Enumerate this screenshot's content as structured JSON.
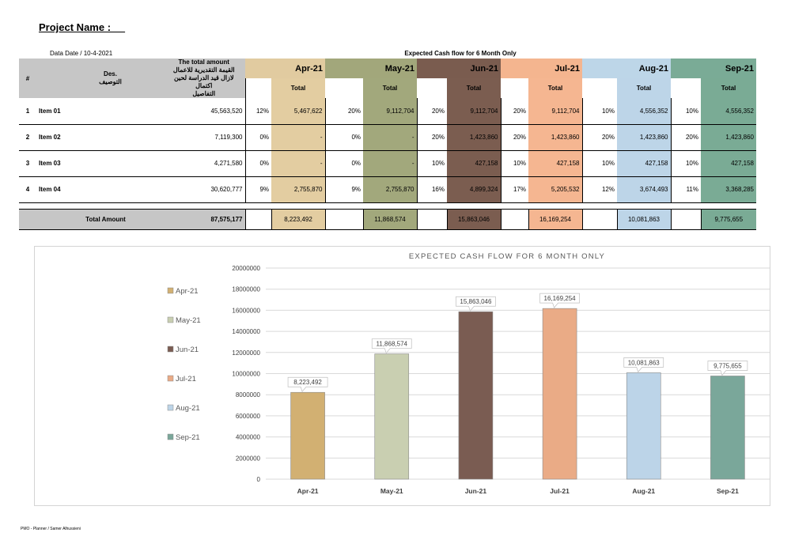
{
  "header": {
    "project_name": "Project Name :     ",
    "data_date": "Data Date /  10-4-2021",
    "table_title": "Expected Cash flow for 6 Month Only"
  },
  "table": {
    "col_hash": "#",
    "col_des_en": "Des.",
    "col_des_ar": "التوصيف",
    "col_amount_en": "The total amount",
    "col_amount_ar1": "القيمة التقديرية للاعمال",
    "col_amount_ar2": "لازال قيد الدراسة لحين اكتمال",
    "col_amount_ar3": "التفاصيل",
    "sub_label": "Total",
    "months": [
      {
        "label": "Apr-21",
        "head": "#e1cba0",
        "body": "#e3cda1"
      },
      {
        "label": "May-21",
        "head": "#a2a77b",
        "body": "#a2a87c"
      },
      {
        "label": "Jun-21",
        "head": "#7a5c4f",
        "body": "#7b5d50"
      },
      {
        "label": "Jul-21",
        "head": "#f4b58f",
        "body": "#f5b691"
      },
      {
        "label": "Aug-21",
        "head": "#bdd6e8",
        "body": "#bdd5e8"
      },
      {
        "label": "Sep-21",
        "head": "#7aab96",
        "body": "#7aab95"
      }
    ],
    "rows": [
      {
        "num": "1",
        "name": "Item 01",
        "total": "45,563,520",
        "cells": [
          [
            "12%",
            "5,467,622"
          ],
          [
            "20%",
            "9,112,704"
          ],
          [
            "20%",
            "9,112,704"
          ],
          [
            "20%",
            "9,112,704"
          ],
          [
            "10%",
            "4,556,352"
          ],
          [
            "10%",
            "4,556,352"
          ]
        ]
      },
      {
        "num": "2",
        "name": "Item 02",
        "total": "7,119,300",
        "cells": [
          [
            "0%",
            "-"
          ],
          [
            "0%",
            "-"
          ],
          [
            "20%",
            "1,423,860"
          ],
          [
            "20%",
            "1,423,860"
          ],
          [
            "20%",
            "1,423,860"
          ],
          [
            "20%",
            "1,423,860"
          ]
        ]
      },
      {
        "num": "3",
        "name": "Item 03",
        "total": "4,271,580",
        "cells": [
          [
            "0%",
            "-"
          ],
          [
            "0%",
            "-"
          ],
          [
            "10%",
            "427,158"
          ],
          [
            "10%",
            "427,158"
          ],
          [
            "10%",
            "427,158"
          ],
          [
            "10%",
            "427,158"
          ]
        ]
      },
      {
        "num": "4",
        "name": "Item 04",
        "total": "30,620,777",
        "cells": [
          [
            "9%",
            "2,755,870"
          ],
          [
            "9%",
            "2,755,870"
          ],
          [
            "16%",
            "4,899,324"
          ],
          [
            "17%",
            "5,205,532"
          ],
          [
            "12%",
            "3,674,493"
          ],
          [
            "11%",
            "3,368,285"
          ]
        ]
      }
    ],
    "total_row": {
      "label": "Total Amount",
      "total": "87,575,177",
      "values": [
        "8,223,492",
        "11,868,574",
        "15,863,046",
        "16,169,254",
        "10,081,863",
        "9,775,655"
      ]
    }
  },
  "chart_data": {
    "type": "bar",
    "title": "EXPECTED CASH FLOW FOR 6 MONTH ONLY",
    "categories": [
      "Apr-21",
      "May-21",
      "Jun-21",
      "Jul-21",
      "Aug-21",
      "Sep-21"
    ],
    "values": [
      8223492,
      11868574,
      15863046,
      16169254,
      10081863,
      9775655
    ],
    "data_labels": [
      "8,223,492",
      "11,868,574",
      "15,863,046",
      "16,169,254",
      "10,081,863",
      "9,775,655"
    ],
    "colors": [
      "#d2b072",
      "#c9cfb1",
      "#7a5c52",
      "#eaab86",
      "#bcd4e8",
      "#7aa79a"
    ],
    "ylim": [
      0,
      20000000
    ],
    "yticks": [
      "0",
      "2000000",
      "4000000",
      "6000000",
      "8000000",
      "10000000",
      "12000000",
      "14000000",
      "16000000",
      "18000000",
      "20000000"
    ],
    "grid": true,
    "legend_placement": "left"
  },
  "footer": "PMO - Planner / Samer Alhussieni"
}
